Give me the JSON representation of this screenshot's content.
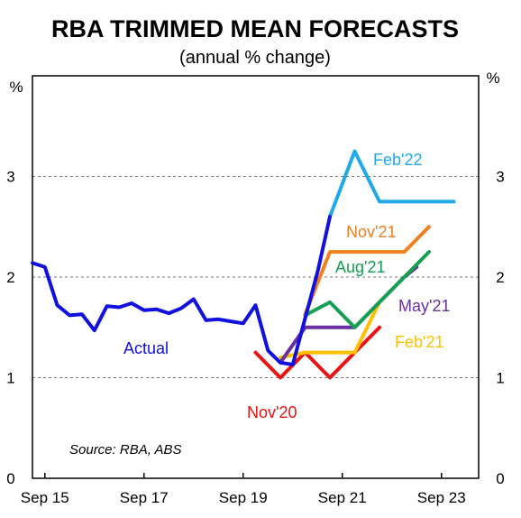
{
  "chart_data": {
    "type": "line",
    "title": "RBA TRIMMED MEAN FORECASTS",
    "subtitle": "(annual % change)",
    "y_unit_left": "%",
    "y_unit_right": "%",
    "ylim": [
      0,
      4
    ],
    "yticks": [
      0,
      1,
      2,
      3
    ],
    "xlim": [
      2015.5,
      2024.5
    ],
    "xticks": [
      {
        "label": "Sep 15",
        "x": 2015.75
      },
      {
        "label": "Sep 17",
        "x": 2017.75
      },
      {
        "label": "Sep 19",
        "x": 2019.75
      },
      {
        "label": "Sep 21",
        "x": 2021.75
      },
      {
        "label": "Sep 23",
        "x": 2023.75
      }
    ],
    "grid": "horizontal-dashed",
    "source": "Source: RBA, ABS",
    "series": [
      {
        "name": "Actual",
        "color": "#1010e0",
        "x": [
          2015.5,
          2015.75,
          2016.0,
          2016.25,
          2016.5,
          2016.75,
          2017.0,
          2017.25,
          2017.5,
          2017.75,
          2018.0,
          2018.25,
          2018.5,
          2018.75,
          2019.0,
          2019.25,
          2019.5,
          2019.75,
          2020.0,
          2020.25,
          2020.5,
          2020.75,
          2021.0,
          2021.25,
          2021.5
        ],
        "y": [
          2.14,
          2.1,
          1.72,
          1.62,
          1.63,
          1.47,
          1.71,
          1.7,
          1.74,
          1.67,
          1.68,
          1.64,
          1.69,
          1.78,
          1.57,
          1.58,
          1.56,
          1.54,
          1.72,
          1.27,
          1.15,
          1.13,
          1.59,
          2.05,
          2.6
        ]
      },
      {
        "name": "Nov'20",
        "color": "#ee1111",
        "x": [
          2020.0,
          2020.5,
          2021.0,
          2021.5,
          2022.0,
          2022.5
        ],
        "y": [
          1.25,
          1.0,
          1.25,
          1.0,
          1.25,
          1.5
        ]
      },
      {
        "name": "Feb'21",
        "color": "#ffc000",
        "x": [
          2020.5,
          2021.0,
          2021.5,
          2022.0,
          2022.25,
          2022.5
        ],
        "y": [
          1.2,
          1.25,
          1.25,
          1.25,
          1.5,
          1.75
        ]
      },
      {
        "name": "May'21",
        "color": "#6a2fa0",
        "x": [
          2020.5,
          2021.0,
          2021.5,
          2022.0,
          2022.5,
          2023.0,
          2023.25
        ],
        "y": [
          1.15,
          1.5,
          1.5,
          1.5,
          1.75,
          2.0,
          2.1
        ]
      },
      {
        "name": "Aug'21",
        "color": "#14a050",
        "x": [
          2021.0,
          2021.5,
          2022.0,
          2022.5,
          2023.0,
          2023.5
        ],
        "y": [
          1.62,
          1.75,
          1.5,
          1.75,
          2.0,
          2.25
        ]
      },
      {
        "name": "Nov'21",
        "color": "#f08020",
        "x": [
          2021.0,
          2021.5,
          2022.0,
          2022.5,
          2023.0,
          2023.5
        ],
        "y": [
          1.63,
          2.25,
          2.25,
          2.25,
          2.25,
          2.5
        ]
      },
      {
        "name": "Feb'22",
        "color": "#20a8e8",
        "x": [
          2021.5,
          2022.0,
          2022.5,
          2023.0,
          2023.5,
          2024.0
        ],
        "y": [
          2.6,
          3.25,
          2.75,
          2.75,
          2.75,
          2.75
        ]
      }
    ]
  }
}
